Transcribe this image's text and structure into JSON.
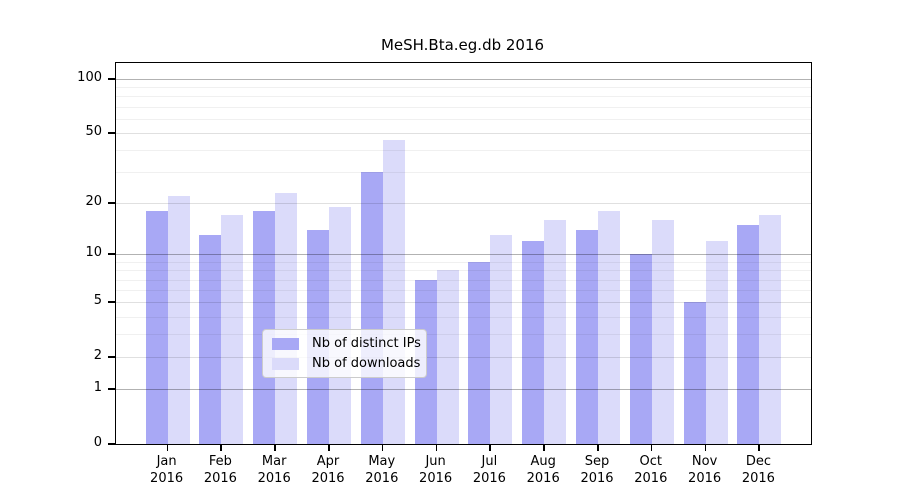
{
  "chart_data": {
    "type": "bar",
    "title": "MeSH.Bta.eg.db 2016",
    "yscale": "log1p",
    "categories": [
      "Jan",
      "Feb",
      "Mar",
      "Apr",
      "May",
      "Jun",
      "Jul",
      "Aug",
      "Sep",
      "Oct",
      "Nov",
      "Dec"
    ],
    "x_year": "2016",
    "series": [
      {
        "name": "Nb of distinct IPs",
        "color": "#a8a8f5",
        "values": [
          18,
          13,
          18,
          14,
          30,
          7,
          9,
          12,
          14,
          10,
          5,
          15
        ]
      },
      {
        "name": "Nb of downloads",
        "color": "#dbdbfa",
        "values": [
          22,
          17,
          23,
          19,
          46,
          8,
          13,
          16,
          18,
          16,
          12,
          17
        ]
      }
    ],
    "y_ticks": [
      0,
      1,
      2,
      5,
      10,
      20,
      50,
      100
    ],
    "ylim": [
      0,
      110
    ],
    "xlabel": "",
    "ylabel": "",
    "grid": {
      "major_lines": [
        1,
        10,
        100
      ],
      "mid_lines": [
        2,
        5,
        20,
        50
      ],
      "minor_lines": [
        3,
        4,
        6,
        7,
        8,
        9,
        30,
        40,
        60,
        70,
        80,
        90
      ],
      "major_color": "rgba(0,0,0,0.30)",
      "mid_color": "rgba(0,0,0,0.12)",
      "minor_color": "rgba(0,0,0,0.06)",
      "drawn_over_bars": true
    },
    "legend_position": "bottom-center-inside"
  }
}
